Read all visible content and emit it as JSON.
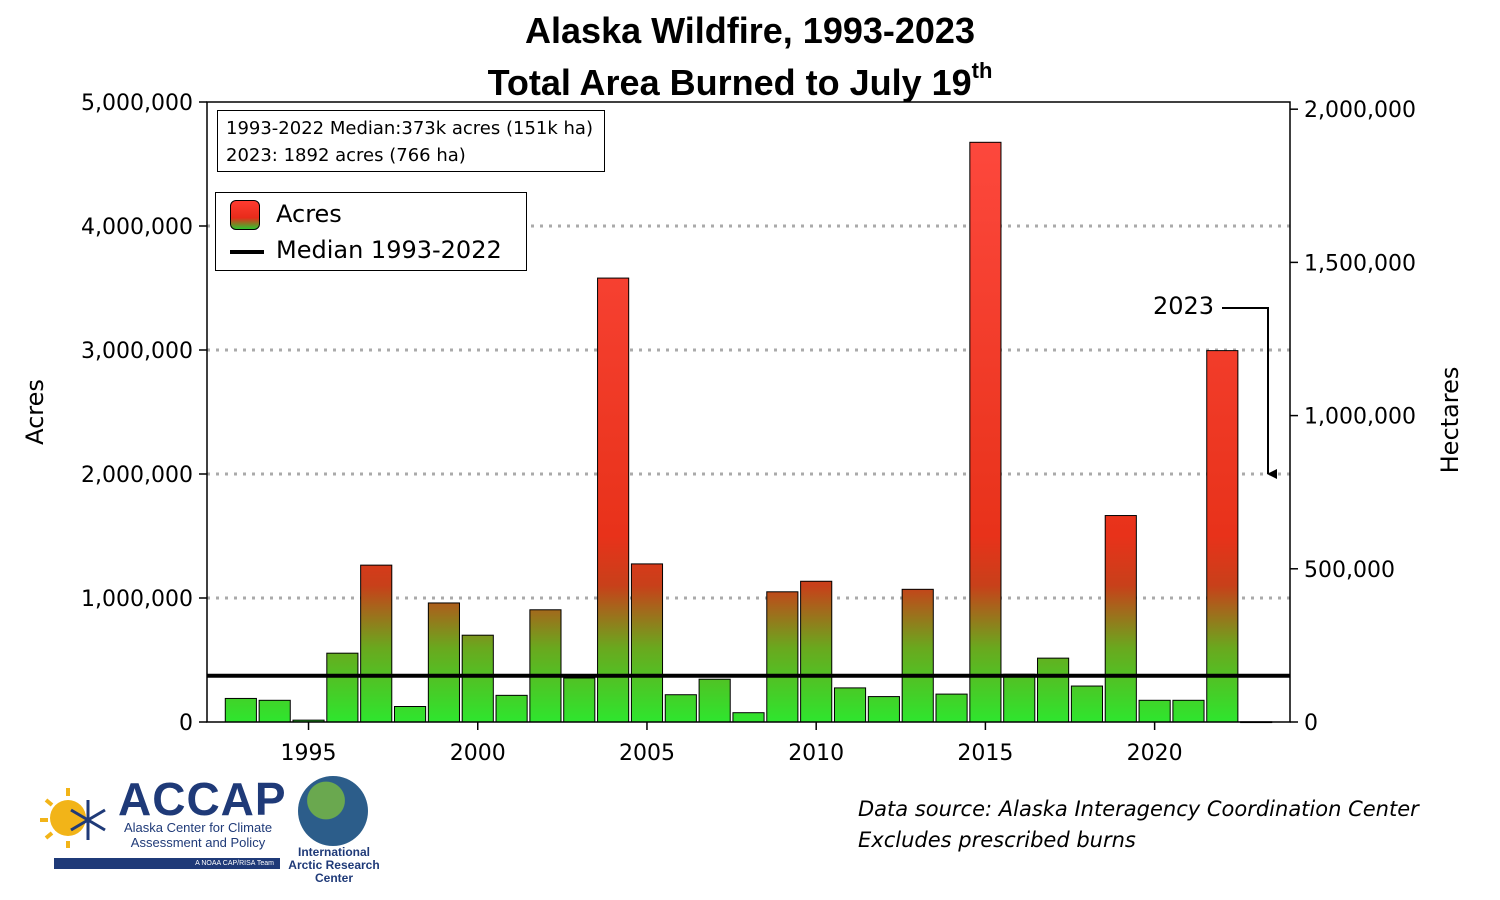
{
  "title": {
    "line1": "Alaska Wildfire, 1993-2023",
    "line2": "Total Area Burned to July 19",
    "line2_sup": "th"
  },
  "info_box": {
    "line1": "1993-2022 Median:373k acres (151k ha)",
    "line2": "2023: 1892 acres (766 ha)"
  },
  "legend": {
    "acres": "Acres",
    "median": "Median 1993-2022"
  },
  "annotation": "2023",
  "source": {
    "line1": "Data source: Alaska Interagency Coordination Center",
    "line2": "Excludes prescribed burns"
  },
  "logos": {
    "accap_name": "ACCAP",
    "accap_sub": "Alaska Center for Climate Assessment and Policy",
    "accap_tag": "A NOAA CAP/RISA Team",
    "iarc": "International Arctic Research Center"
  },
  "colors": {
    "bar_top": "#ff3b30",
    "bar_bottom": "#2ee62e",
    "median_line": "#000000",
    "grid": "#aaaaaa"
  },
  "chart_data": {
    "type": "bar",
    "x": [
      1993,
      1994,
      1995,
      1996,
      1997,
      1998,
      1999,
      2000,
      2001,
      2002,
      2003,
      2004,
      2005,
      2006,
      2007,
      2008,
      2009,
      2010,
      2011,
      2012,
      2013,
      2014,
      2015,
      2016,
      2017,
      2018,
      2019,
      2020,
      2021,
      2022,
      2023
    ],
    "values": [
      190000,
      175000,
      15000,
      555000,
      1265000,
      125000,
      960000,
      700000,
      215000,
      905000,
      355000,
      3580000,
      1275000,
      220000,
      345000,
      75000,
      1050000,
      1135000,
      275000,
      205000,
      1070000,
      225000,
      4675000,
      385000,
      515000,
      290000,
      1665000,
      175000,
      175000,
      2995000,
      1892
    ],
    "median": 373000,
    "xticks": [
      1995,
      2000,
      2005,
      2010,
      2015,
      2020
    ],
    "xlim": [
      1992,
      2024
    ],
    "ylabel": "Acres",
    "ylim": [
      0,
      5000000
    ],
    "yticks": [
      "0",
      "1,000,000",
      "2,000,000",
      "3,000,000",
      "4,000,000",
      "5,000,000"
    ],
    "y2label": "Hectares",
    "y2ticks": [
      "0",
      "500,000",
      "1,000,000",
      "1,500,000",
      "2,000,000"
    ],
    "grid": "dotted horizontal",
    "legend_position": "top-left"
  }
}
